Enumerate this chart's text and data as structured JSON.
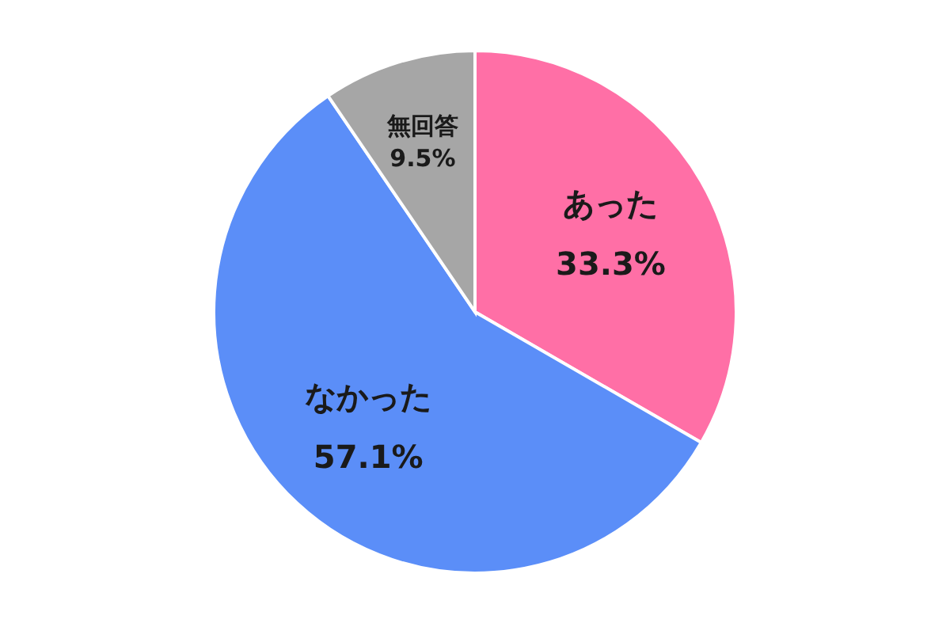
{
  "chart_data": {
    "type": "pie",
    "categories": [
      "あった",
      "なかった",
      "無回答"
    ],
    "values": [
      33.3,
      57.1,
      9.5
    ],
    "value_labels": [
      "33.3%",
      "57.1%",
      "9.5%"
    ],
    "colors": [
      "#ff6fa6",
      "#5b8ef8",
      "#a6a6a6"
    ]
  }
}
